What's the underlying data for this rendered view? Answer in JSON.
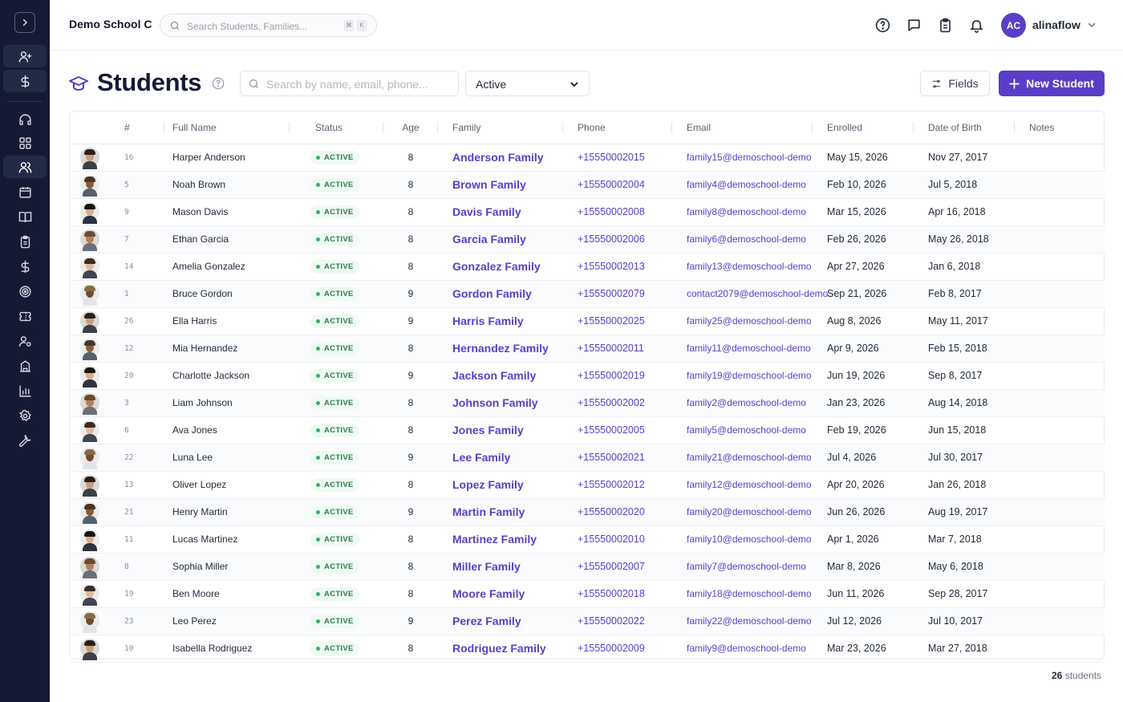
{
  "topbar": {
    "school": "Demo School C",
    "search_placeholder": "Search Students, Families...",
    "kbd1": "⌘",
    "kbd2": "K",
    "user_initials": "AC",
    "username": "alinaflow"
  },
  "page": {
    "title": "Students",
    "search_placeholder": "Search by name, email, phone...",
    "status_value": "Active",
    "fields_label": "Fields",
    "new_label": "New Student"
  },
  "colors": {
    "accent": "#5b3ec8",
    "sidebar": "#141a33",
    "active_badge": "#2f7d4f"
  },
  "table": {
    "columns": [
      "#",
      "Full Name",
      "Status",
      "Age",
      "Family",
      "Phone",
      "Email",
      "Enrolled",
      "Date of Birth",
      "Notes"
    ],
    "rows": [
      {
        "id": "16",
        "name": "Harper Anderson",
        "status": "ACTIVE",
        "age": "8",
        "family": "Anderson Family",
        "phone": "+15550002015",
        "email": "family15@demoschool-demo",
        "enrolled": "May 15, 2026",
        "dob": "Nov 27, 2017",
        "notes": ""
      },
      {
        "id": "5",
        "name": "Noah Brown",
        "status": "ACTIVE",
        "age": "8",
        "family": "Brown Family",
        "phone": "+15550002004",
        "email": "family4@demoschool-demo",
        "enrolled": "Feb 10, 2026",
        "dob": "Jul 5, 2018",
        "notes": ""
      },
      {
        "id": "9",
        "name": "Mason Davis",
        "status": "ACTIVE",
        "age": "8",
        "family": "Davis Family",
        "phone": "+15550002008",
        "email": "family8@demoschool-demo",
        "enrolled": "Mar 15, 2026",
        "dob": "Apr 16, 2018",
        "notes": ""
      },
      {
        "id": "7",
        "name": "Ethan Garcia",
        "status": "ACTIVE",
        "age": "8",
        "family": "Garcia Family",
        "phone": "+15550002006",
        "email": "family6@demoschool-demo",
        "enrolled": "Feb 26, 2026",
        "dob": "May 26, 2018",
        "notes": ""
      },
      {
        "id": "14",
        "name": "Amelia Gonzalez",
        "status": "ACTIVE",
        "age": "8",
        "family": "Gonzalez Family",
        "phone": "+15550002013",
        "email": "family13@demoschool-demo",
        "enrolled": "Apr 27, 2026",
        "dob": "Jan 6, 2018",
        "notes": ""
      },
      {
        "id": "1",
        "name": "Bruce Gordon",
        "status": "ACTIVE",
        "age": "9",
        "family": "Gordon Family",
        "phone": "+15550002079",
        "email": "contact2079@demoschool-demo",
        "enrolled": "Sep 21, 2026",
        "dob": "Feb 8, 2017",
        "notes": ""
      },
      {
        "id": "26",
        "name": "Ella Harris",
        "status": "ACTIVE",
        "age": "9",
        "family": "Harris Family",
        "phone": "+15550002025",
        "email": "family25@demoschool-demo",
        "enrolled": "Aug 8, 2026",
        "dob": "May 11, 2017",
        "notes": ""
      },
      {
        "id": "12",
        "name": "Mia Hernandez",
        "status": "ACTIVE",
        "age": "8",
        "family": "Hernandez Family",
        "phone": "+15550002011",
        "email": "family11@demoschool-demo",
        "enrolled": "Apr 9, 2026",
        "dob": "Feb 15, 2018",
        "notes": ""
      },
      {
        "id": "20",
        "name": "Charlotte Jackson",
        "status": "ACTIVE",
        "age": "9",
        "family": "Jackson Family",
        "phone": "+15550002019",
        "email": "family19@demoschool-demo",
        "enrolled": "Jun 19, 2026",
        "dob": "Sep 8, 2017",
        "notes": ""
      },
      {
        "id": "3",
        "name": "Liam Johnson",
        "status": "ACTIVE",
        "age": "8",
        "family": "Johnson Family",
        "phone": "+15550002002",
        "email": "family2@demoschool-demo",
        "enrolled": "Jan 23, 2026",
        "dob": "Aug 14, 2018",
        "notes": ""
      },
      {
        "id": "6",
        "name": "Ava Jones",
        "status": "ACTIVE",
        "age": "8",
        "family": "Jones Family",
        "phone": "+15550002005",
        "email": "family5@demoschool-demo",
        "enrolled": "Feb 19, 2026",
        "dob": "Jun 15, 2018",
        "notes": ""
      },
      {
        "id": "22",
        "name": "Luna Lee",
        "status": "ACTIVE",
        "age": "9",
        "family": "Lee Family",
        "phone": "+15550002021",
        "email": "family21@demoschool-demo",
        "enrolled": "Jul 4, 2026",
        "dob": "Jul 30, 2017",
        "notes": ""
      },
      {
        "id": "13",
        "name": "Oliver Lopez",
        "status": "ACTIVE",
        "age": "8",
        "family": "Lopez Family",
        "phone": "+15550002012",
        "email": "family12@demoschool-demo",
        "enrolled": "Apr 20, 2026",
        "dob": "Jan 26, 2018",
        "notes": ""
      },
      {
        "id": "21",
        "name": "Henry Martin",
        "status": "ACTIVE",
        "age": "9",
        "family": "Martin Family",
        "phone": "+15550002020",
        "email": "family20@demoschool-demo",
        "enrolled": "Jun 26, 2026",
        "dob": "Aug 19, 2017",
        "notes": ""
      },
      {
        "id": "11",
        "name": "Lucas Martinez",
        "status": "ACTIVE",
        "age": "8",
        "family": "Martinez Family",
        "phone": "+15550002010",
        "email": "family10@demoschool-demo",
        "enrolled": "Apr 1, 2026",
        "dob": "Mar 7, 2018",
        "notes": ""
      },
      {
        "id": "8",
        "name": "Sophia Miller",
        "status": "ACTIVE",
        "age": "8",
        "family": "Miller Family",
        "phone": "+15550002007",
        "email": "family7@demoschool-demo",
        "enrolled": "Mar 8, 2026",
        "dob": "May 6, 2018",
        "notes": ""
      },
      {
        "id": "19",
        "name": "Ben Moore",
        "status": "ACTIVE",
        "age": "8",
        "family": "Moore Family",
        "phone": "+15550002018",
        "email": "family18@demoschool-demo",
        "enrolled": "Jun 11, 2026",
        "dob": "Sep 28, 2017",
        "notes": ""
      },
      {
        "id": "23",
        "name": "Leo Perez",
        "status": "ACTIVE",
        "age": "9",
        "family": "Perez Family",
        "phone": "+15550002022",
        "email": "family22@demoschool-demo",
        "enrolled": "Jul 12, 2026",
        "dob": "Jul 10, 2017",
        "notes": ""
      },
      {
        "id": "10",
        "name": "Isabella Rodriguez",
        "status": "ACTIVE",
        "age": "8",
        "family": "Rodriguez Family",
        "phone": "+15550002009",
        "email": "family9@demoschool-demo",
        "enrolled": "Mar 23, 2026",
        "dob": "Mar 27, 2018",
        "notes": ""
      }
    ]
  },
  "footer": {
    "count": "26",
    "label": " students"
  }
}
